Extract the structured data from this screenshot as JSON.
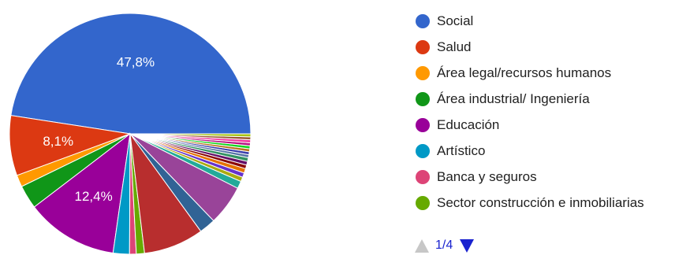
{
  "chart_data": {
    "type": "pie",
    "start_angle_deg": 0,
    "direction": "counterclockwise",
    "slices": [
      {
        "label": "Social",
        "value": 47.8,
        "color": "#3366cc",
        "data_label": "47,8%"
      },
      {
        "label": "Salud",
        "value": 8.1,
        "color": "#dc3912",
        "data_label": "8,1%"
      },
      {
        "label": "Área legal/recursos humanos",
        "value": 1.6,
        "color": "#ff9900",
        "data_label": ""
      },
      {
        "label": "Área industrial/ Ingeniería",
        "value": 3.2,
        "color": "#109618",
        "data_label": ""
      },
      {
        "label": "Educación",
        "value": 12.4,
        "color": "#990099",
        "data_label": "12,4%"
      },
      {
        "label": "Artístico",
        "value": 2.2,
        "color": "#0099c6",
        "data_label": ""
      },
      {
        "label": "Banca y seguros",
        "value": 0.9,
        "color": "#dd4477",
        "data_label": ""
      },
      {
        "label": "Sector construcción e inmobiliarias",
        "value": 1.1,
        "color": "#66aa00",
        "data_label": ""
      },
      {
        "label": "",
        "value": 8.1,
        "color": "#b82e2e",
        "data_label": ""
      },
      {
        "label": "",
        "value": 2.2,
        "color": "#316395",
        "data_label": ""
      },
      {
        "label": "",
        "value": 5.4,
        "color": "#994499",
        "data_label": ""
      },
      {
        "label": "",
        "value": 1.0,
        "color": "#22aa99",
        "data_label": ""
      },
      {
        "label": "",
        "value": 0.6,
        "color": "#aaaa11",
        "data_label": ""
      },
      {
        "label": "",
        "value": 0.6,
        "color": "#6633cc",
        "data_label": ""
      },
      {
        "label": "",
        "value": 0.6,
        "color": "#e67300",
        "data_label": ""
      },
      {
        "label": "",
        "value": 0.5,
        "color": "#8b0707",
        "data_label": ""
      },
      {
        "label": "",
        "value": 0.5,
        "color": "#651067",
        "data_label": ""
      },
      {
        "label": "",
        "value": 0.5,
        "color": "#329262",
        "data_label": ""
      },
      {
        "label": "",
        "value": 0.4,
        "color": "#5574a6",
        "data_label": ""
      },
      {
        "label": "",
        "value": 0.4,
        "color": "#3b3eac",
        "data_label": ""
      },
      {
        "label": "",
        "value": 0.4,
        "color": "#b77322",
        "data_label": ""
      },
      {
        "label": "",
        "value": 0.4,
        "color": "#16d620",
        "data_label": ""
      },
      {
        "label": "",
        "value": 0.4,
        "color": "#b91383",
        "data_label": ""
      },
      {
        "label": "",
        "value": 0.4,
        "color": "#f4359e",
        "data_label": ""
      },
      {
        "label": "",
        "value": 0.4,
        "color": "#9c5935",
        "data_label": ""
      },
      {
        "label": "",
        "value": 0.4,
        "color": "#a9c413",
        "data_label": ""
      }
    ]
  },
  "legend": {
    "items": [
      {
        "label": "Social",
        "color": "#3366cc"
      },
      {
        "label": "Salud",
        "color": "#dc3912"
      },
      {
        "label": "Área legal/recursos humanos",
        "color": "#ff9900"
      },
      {
        "label": "Área industrial/ Ingeniería",
        "color": "#109618"
      },
      {
        "label": "Educación",
        "color": "#990099"
      },
      {
        "label": "Artístico",
        "color": "#0099c6"
      },
      {
        "label": "Banca y seguros",
        "color": "#dd4477"
      },
      {
        "label": "Sector construcción e inmobiliarias",
        "color": "#66aa00"
      }
    ]
  },
  "pager": {
    "label": "1/4",
    "prev_icon": "triangle-up-icon",
    "next_icon": "triangle-down-icon"
  }
}
